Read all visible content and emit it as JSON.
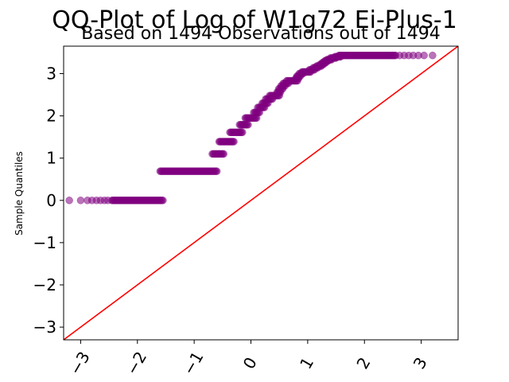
{
  "chart_data": {
    "type": "scatter",
    "title": "QQ-Plot of Log of W1g72 Ei-Plus-1",
    "subtitle": "Based on 1494 Observations out of 1494",
    "xlabel": "",
    "ylabel": "Sample Quantiles",
    "xlim": [
      -3.3,
      3.65
    ],
    "ylim": [
      -3.3,
      3.65
    ],
    "xticks": [
      "−3",
      "−2",
      "−1",
      "0",
      "1",
      "2",
      "3"
    ],
    "yticks": [
      "−3",
      "−2",
      "−1",
      "0",
      "1",
      "2",
      "3"
    ],
    "xtick_values": [
      -3,
      -2,
      -1,
      0,
      1,
      2,
      3
    ],
    "ytick_values": [
      -3,
      -2,
      -1,
      0,
      1,
      2,
      3
    ],
    "grid": false,
    "colors": {
      "points": "#800080",
      "reference_line": "#ff0000"
    },
    "reference_line": {
      "slope": 1,
      "intercept": 0
    },
    "steps": [
      {
        "y": 0.0,
        "x_from": -1.55,
        "x_to": -2.45,
        "outliers": [
          -3.2,
          -3.0,
          -2.88,
          -2.8,
          -2.72,
          -2.65,
          -2.58,
          -2.52
        ]
      },
      {
        "y": 0.69,
        "x_from": -1.6,
        "x_to": -0.6
      },
      {
        "y": 1.1,
        "x_from": -0.68,
        "x_to": -0.48
      },
      {
        "y": 1.39,
        "x_from": -0.56,
        "x_to": -0.3
      },
      {
        "y": 1.61,
        "x_from": -0.37,
        "x_to": -0.15
      },
      {
        "y": 1.79,
        "x_from": -0.2,
        "x_to": -0.05
      },
      {
        "y": 1.95,
        "x_from": -0.1,
        "x_to": 0.1
      },
      {
        "y": 2.08,
        "x_from": 0.05,
        "x_to": 0.15
      },
      {
        "y": 2.2,
        "x_from": 0.12,
        "x_to": 0.24
      },
      {
        "y": 2.3,
        "x_from": 0.2,
        "x_to": 0.3
      },
      {
        "y": 2.4,
        "x_from": 0.26,
        "x_to": 0.38
      },
      {
        "y": 2.48,
        "x_from": 0.33,
        "x_to": 0.5
      },
      {
        "y": 2.56,
        "x_from": 0.46,
        "x_to": 0.52
      },
      {
        "y": 2.64,
        "x_from": 0.49,
        "x_to": 0.56
      },
      {
        "y": 2.71,
        "x_from": 0.53,
        "x_to": 0.6
      },
      {
        "y": 2.77,
        "x_from": 0.57,
        "x_to": 0.66
      },
      {
        "y": 2.83,
        "x_from": 0.63,
        "x_to": 0.82
      },
      {
        "y": 2.89,
        "x_from": 0.79,
        "x_to": 0.84
      },
      {
        "y": 2.94,
        "x_from": 0.81,
        "x_to": 0.87
      },
      {
        "y": 3.0,
        "x_from": 0.85,
        "x_to": 0.92
      },
      {
        "y": 3.04,
        "x_from": 0.9,
        "x_to": 1.05
      },
      {
        "y": 3.09,
        "x_from": 1.03,
        "x_to": 1.12
      },
      {
        "y": 3.14,
        "x_from": 1.1,
        "x_to": 1.18
      },
      {
        "y": 3.18,
        "x_from": 1.16,
        "x_to": 1.24
      },
      {
        "y": 3.22,
        "x_from": 1.22,
        "x_to": 1.28
      },
      {
        "y": 3.26,
        "x_from": 1.26,
        "x_to": 1.32
      },
      {
        "y": 3.3,
        "x_from": 1.3,
        "x_to": 1.36
      },
      {
        "y": 3.33,
        "x_from": 1.34,
        "x_to": 1.42
      },
      {
        "y": 3.37,
        "x_from": 1.4,
        "x_to": 1.5
      },
      {
        "y": 3.4,
        "x_from": 1.48,
        "x_to": 1.58
      },
      {
        "y": 3.43,
        "x_from": 1.55,
        "x_to": 2.55,
        "outliers": [
          2.62,
          2.7,
          2.78,
          2.86,
          2.95,
          3.05,
          3.2
        ]
      }
    ]
  }
}
